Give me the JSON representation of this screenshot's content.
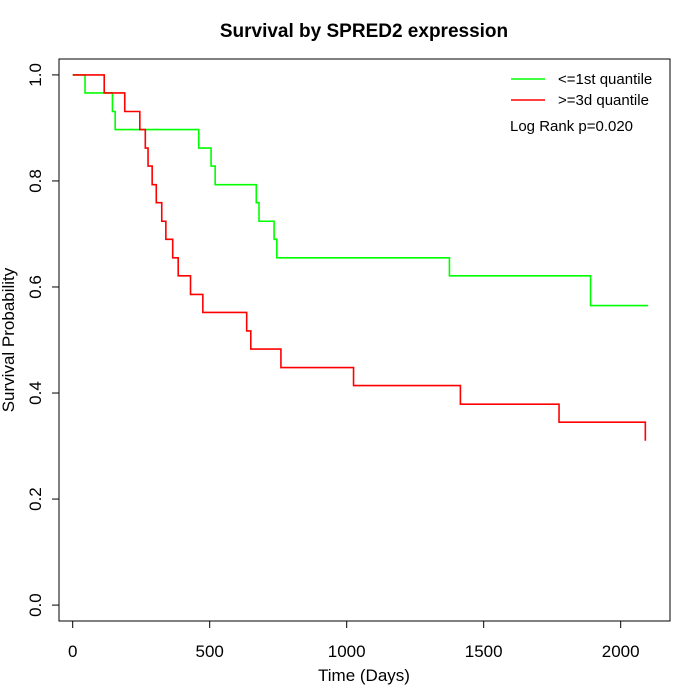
{
  "chart_data": {
    "type": "line",
    "title": "Survival by SPRED2 expression",
    "xlabel": "Time (Days)",
    "ylabel": "Survival Probability",
    "xlim": [
      -50,
      2180
    ],
    "ylim": [
      -0.03,
      1.03
    ],
    "xticks": [
      0,
      500,
      1000,
      1500,
      2000
    ],
    "yticks": [
      0.0,
      0.2,
      0.4,
      0.6,
      0.8,
      1.0
    ],
    "xtick_labels": [
      "0",
      "500",
      "1000",
      "1500",
      "2000"
    ],
    "ytick_labels": [
      "0.0",
      "0.2",
      "0.4",
      "0.6",
      "0.8",
      "1.0"
    ],
    "grid": false,
    "legend_position": "top-right",
    "annotation": "Log Rank p=0.020",
    "series": [
      {
        "name": "<=1st quantile",
        "color": "#00ff00",
        "step": true,
        "x": [
          0,
          45,
          145,
          155,
          460,
          505,
          520,
          670,
          680,
          735,
          745,
          1375,
          1890,
          2100
        ],
        "y": [
          1.0,
          0.966,
          0.931,
          0.897,
          0.862,
          0.828,
          0.793,
          0.759,
          0.724,
          0.69,
          0.655,
          0.621,
          0.565,
          0.565
        ]
      },
      {
        "name": ">=3d quantile",
        "color": "#ff0000",
        "step": true,
        "x": [
          0,
          115,
          190,
          245,
          265,
          275,
          290,
          305,
          325,
          340,
          365,
          385,
          430,
          475,
          635,
          650,
          760,
          1025,
          1415,
          1775,
          2090
        ],
        "y": [
          1.0,
          0.966,
          0.931,
          0.897,
          0.862,
          0.828,
          0.793,
          0.759,
          0.724,
          0.69,
          0.655,
          0.621,
          0.586,
          0.552,
          0.517,
          0.483,
          0.448,
          0.414,
          0.379,
          0.345,
          0.31
        ]
      }
    ]
  }
}
